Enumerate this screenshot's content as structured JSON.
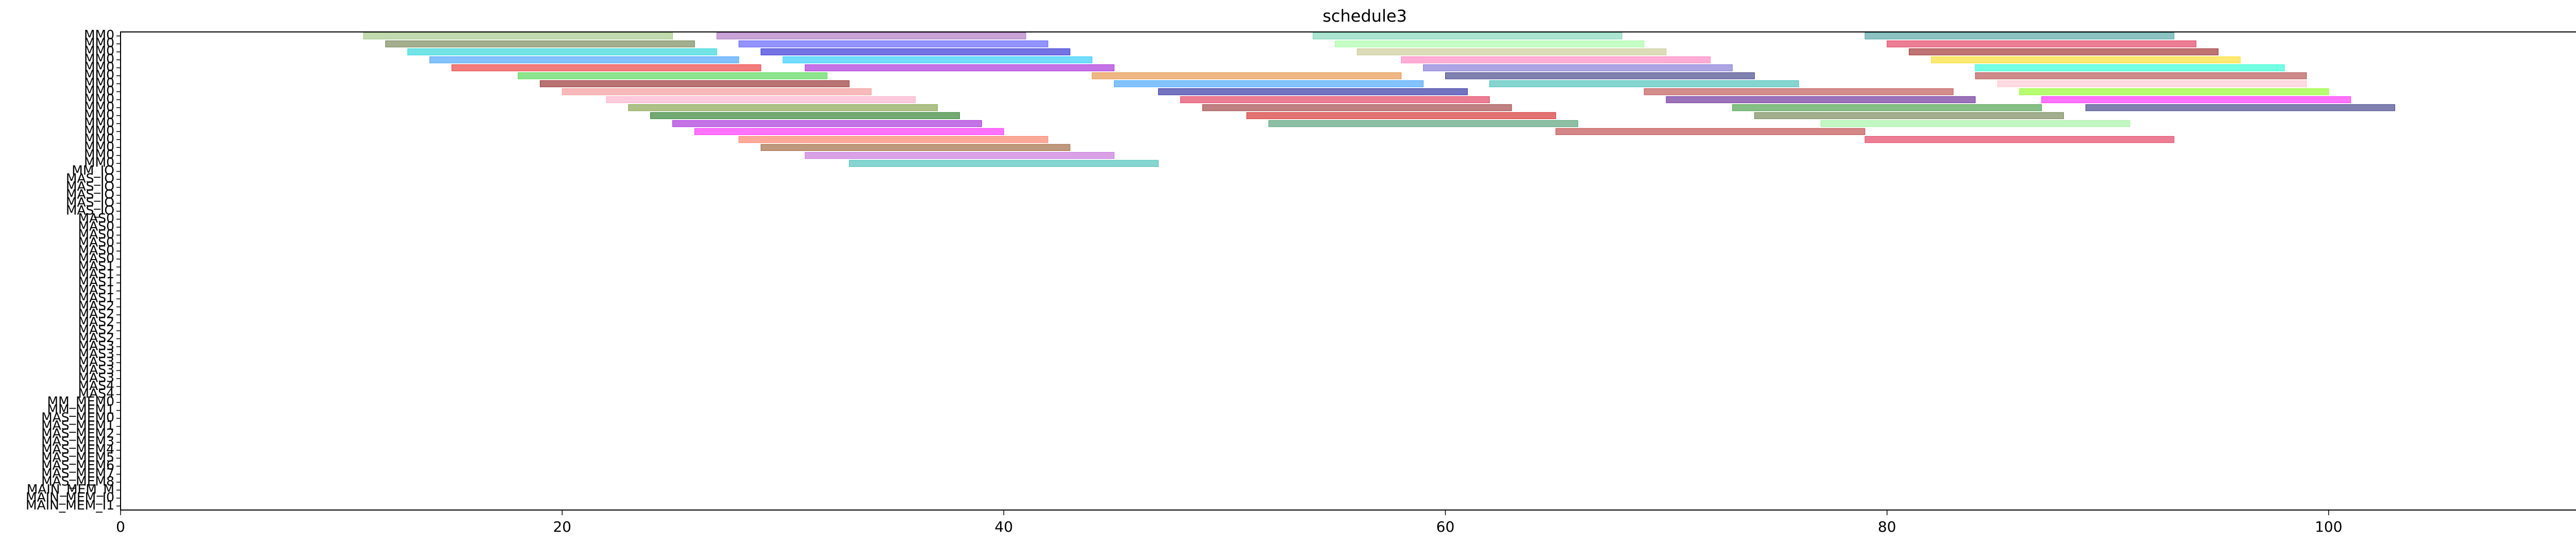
{
  "chart_data": {
    "type": "gantt",
    "title": "schedule3",
    "xlabel": "",
    "ylabel": "",
    "xlim": [
      0,
      113
    ],
    "xticks": [
      0,
      20,
      40,
      60,
      80,
      100
    ],
    "grid": false,
    "legend": "none",
    "rows": [
      "MM0",
      "MM0",
      "MM0",
      "MM0",
      "MM0",
      "MM0",
      "MM0",
      "MM0",
      "MM0",
      "MM0",
      "MM0",
      "MM0",
      "MM0",
      "MM0",
      "MM0",
      "MM0",
      "MM0",
      "MM_IO",
      "MAS_IO",
      "MAS_IO",
      "MAS_IO",
      "MAS_IO",
      "MAS_IO",
      "MAS0",
      "MAS0",
      "MAS0",
      "MAS0",
      "MAS0",
      "MAS0",
      "MAS1",
      "MAS1",
      "MAS1",
      "MAS1",
      "MAS1",
      "MAS2",
      "MAS2",
      "MAS2",
      "MAS2",
      "MAS2",
      "MAS3",
      "MAS3",
      "MAS3",
      "MAS3",
      "MAS3",
      "MAS4",
      "MAS4",
      "MM_MEM0",
      "MM_MEM1",
      "MAS_MEM0",
      "MAS_MEM1",
      "MAS_MEM2",
      "MAS_MEM3",
      "MAS_MEM4",
      "MAS_MEM5",
      "MAS_MEM6",
      "MAS_MEM7",
      "MAS_MEM8",
      "MAIN_MEM_M",
      "MAIN_MEM_I0",
      "MAIN_MEM_I1"
    ],
    "tasks": [
      {
        "row": 0,
        "start": 11,
        "end": 25,
        "color": "#8fbc6e"
      },
      {
        "row": 0,
        "start": 27,
        "end": 41,
        "color": "#9b59b6"
      },
      {
        "row": 0,
        "start": 54,
        "end": 68,
        "color": "#66cdaa"
      },
      {
        "row": 0,
        "start": 79,
        "end": 93,
        "color": "#2f8f8f"
      },
      {
        "row": 1,
        "start": 12,
        "end": 26,
        "color": "#556b2f"
      },
      {
        "row": 1,
        "start": 28,
        "end": 42,
        "color": "#3a3aff"
      },
      {
        "row": 1,
        "start": 55,
        "end": 69,
        "color": "#98fb98"
      },
      {
        "row": 1,
        "start": 80,
        "end": 94,
        "color": "#dc143c"
      },
      {
        "row": 2,
        "start": 13,
        "end": 27,
        "color": "#00ced1"
      },
      {
        "row": 2,
        "start": 29,
        "end": 43,
        "color": "#0000cd"
      },
      {
        "row": 2,
        "start": 56,
        "end": 70,
        "color": "#c0c080"
      },
      {
        "row": 2,
        "start": 81,
        "end": 95,
        "color": "#8b0000"
      },
      {
        "row": 3,
        "start": 14,
        "end": 28,
        "color": "#1e90ff"
      },
      {
        "row": 3,
        "start": 30,
        "end": 44,
        "color": "#00bfff"
      },
      {
        "row": 3,
        "start": 58,
        "end": 72,
        "color": "#ff69b4"
      },
      {
        "row": 3,
        "start": 82,
        "end": 96,
        "color": "#ffd700"
      },
      {
        "row": 4,
        "start": 15,
        "end": 29,
        "color": "#e81010"
      },
      {
        "row": 4,
        "start": 31,
        "end": 45,
        "color": "#9400d3"
      },
      {
        "row": 4,
        "start": 59,
        "end": 73,
        "color": "#6a5acd"
      },
      {
        "row": 4,
        "start": 84,
        "end": 98,
        "color": "#00ffcc"
      },
      {
        "row": 5,
        "start": 18,
        "end": 32,
        "color": "#32cd32"
      },
      {
        "row": 5,
        "start": 44,
        "end": 58,
        "color": "#e07b20"
      },
      {
        "row": 5,
        "start": 60,
        "end": 74,
        "color": "#191970"
      },
      {
        "row": 5,
        "start": 84,
        "end": 99,
        "color": "#a52a2a"
      },
      {
        "row": 6,
        "start": 19,
        "end": 33,
        "color": "#800000"
      },
      {
        "row": 6,
        "start": 45,
        "end": 59,
        "color": "#1e90ff"
      },
      {
        "row": 6,
        "start": 62,
        "end": 76,
        "color": "#20b2aa"
      },
      {
        "row": 6,
        "start": 85,
        "end": 99,
        "color": "#ffc0cb"
      },
      {
        "row": 7,
        "start": 20,
        "end": 34,
        "color": "#f08080"
      },
      {
        "row": 7,
        "start": 47,
        "end": 61,
        "color": "#00008b"
      },
      {
        "row": 7,
        "start": 69,
        "end": 83,
        "color": "#b03030"
      },
      {
        "row": 7,
        "start": 86,
        "end": 100,
        "color": "#7cfc00"
      },
      {
        "row": 8,
        "start": 22,
        "end": 36,
        "color": "#ff9ec0"
      },
      {
        "row": 8,
        "start": 48,
        "end": 62,
        "color": "#dc143c"
      },
      {
        "row": 8,
        "start": 70,
        "end": 84,
        "color": "#4b0082"
      },
      {
        "row": 8,
        "start": 87,
        "end": 101,
        "color": "#ff00ff"
      },
      {
        "row": 9,
        "start": 23,
        "end": 37,
        "color": "#6b8e23"
      },
      {
        "row": 9,
        "start": 49,
        "end": 63,
        "color": "#8b1a1a"
      },
      {
        "row": 9,
        "start": 73,
        "end": 87,
        "color": "#228b22"
      },
      {
        "row": 9,
        "start": 89,
        "end": 103,
        "color": "#191970"
      },
      {
        "row": 10,
        "start": 24,
        "end": 38,
        "color": "#006400"
      },
      {
        "row": 10,
        "start": 51,
        "end": 65,
        "color": "#cc0000"
      },
      {
        "row": 10,
        "start": 74,
        "end": 88,
        "color": "#556b2f"
      },
      {
        "row": 11,
        "start": 25,
        "end": 39,
        "color": "#9400d3"
      },
      {
        "row": 11,
        "start": 52,
        "end": 66,
        "color": "#2e8b57"
      },
      {
        "row": 11,
        "start": 77,
        "end": 91,
        "color": "#90ee90"
      },
      {
        "row": 12,
        "start": 26,
        "end": 40,
        "color": "#ff00ff"
      },
      {
        "row": 12,
        "start": 65,
        "end": 79,
        "color": "#b22222"
      },
      {
        "row": 13,
        "start": 28,
        "end": 42,
        "color": "#ff6347"
      },
      {
        "row": 13,
        "start": 79,
        "end": 93,
        "color": "#dc143c"
      },
      {
        "row": 14,
        "start": 29,
        "end": 43,
        "color": "#8b4513"
      },
      {
        "row": 15,
        "start": 31,
        "end": 45,
        "color": "#ba55d3"
      },
      {
        "row": 16,
        "start": 33,
        "end": 47,
        "color": "#20b2aa"
      }
    ]
  }
}
